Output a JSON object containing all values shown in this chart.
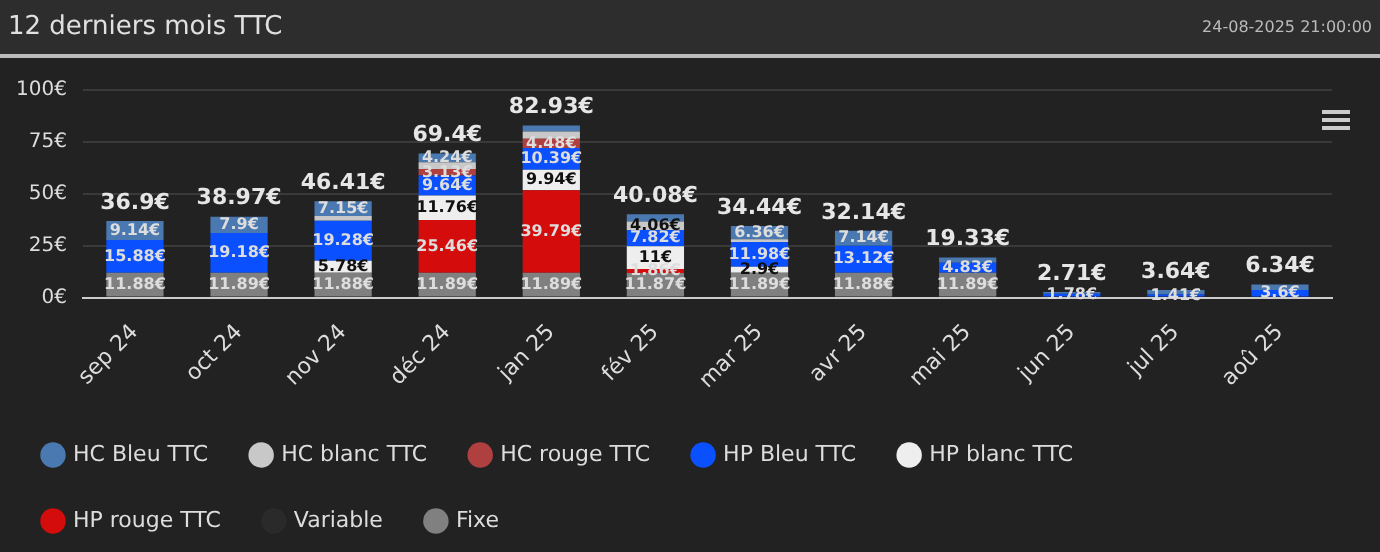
{
  "chart_data": {
    "type": "bar",
    "title": "12 derniers mois TTC",
    "annotations": [
      "24-08-2025 21:00:00"
    ],
    "categories": [
      "sep 24",
      "oct 24",
      "nov 24",
      "déc 24",
      "jan 25",
      "fév 25",
      "mar 25",
      "avr 25",
      "mai 25",
      "jun 25",
      "jul 25",
      "aoû 25"
    ],
    "stacked": true,
    "ylim": [
      0,
      100
    ],
    "yticks": [
      {
        "value": 0,
        "label": "0€"
      },
      {
        "value": 25,
        "label": "25€"
      },
      {
        "value": 50,
        "label": "50€"
      },
      {
        "value": 75,
        "label": "75€"
      },
      {
        "value": 100,
        "label": "100€"
      }
    ],
    "grid": "y",
    "legend": "bottom",
    "marker": "circle",
    "series": [
      {
        "name": "Fixe",
        "color": "#808080",
        "values": [
          11.88,
          11.89,
          11.88,
          11.89,
          11.89,
          11.87,
          11.89,
          11.88,
          11.89,
          0,
          0,
          0
        ],
        "value_labels": [
          "11.88€",
          "11.89€",
          "11.88€",
          "11.89€",
          "11.89€",
          "11.87€",
          "11.89€",
          "11.88€",
          "11.89€",
          null,
          null,
          null
        ]
      },
      {
        "name": "Variable",
        "color": "#2a2a2a",
        "values": [
          null,
          null,
          null,
          null,
          null,
          null,
          null,
          null,
          null,
          null,
          null,
          null
        ]
      },
      {
        "name": "HP rouge TTC",
        "color": "#d40c0c",
        "values": [
          0,
          0,
          0,
          25.46,
          39.79,
          1.86,
          0,
          0,
          0,
          0,
          0,
          0
        ],
        "value_labels": [
          null,
          null,
          null,
          "25.46€",
          "39.79€",
          "1.86€",
          null,
          null,
          null,
          null,
          null,
          null
        ]
      },
      {
        "name": "HP blanc TTC",
        "color": "#eeeeee",
        "values": [
          0,
          0,
          5.78,
          11.76,
          9.94,
          11,
          2.9,
          0,
          0,
          0,
          0,
          0
        ],
        "value_labels": [
          null,
          null,
          "5.78€",
          "11.76€",
          "9.94€",
          "11€",
          "2.9€",
          null,
          null,
          null,
          null,
          null
        ]
      },
      {
        "name": "HP Bleu TTC",
        "color": "#0a50ff",
        "values": [
          15.88,
          19.18,
          19.28,
          9.64,
          10.39,
          7.82,
          11.98,
          13.12,
          4.83,
          1.78,
          1.41,
          3.6
        ],
        "value_labels": [
          "15.88€",
          "19.18€",
          "19.28€",
          "9.64€",
          "10.39€",
          "7.82€",
          "11.98€",
          "13.12€",
          "4.83€",
          "1.78€",
          "1.41€",
          "3.6€"
        ]
      },
      {
        "name": "HC rouge TTC",
        "color": "#b04040",
        "values": [
          0,
          0,
          0,
          3.13,
          4.48,
          0,
          0,
          0,
          0,
          0,
          0,
          0
        ],
        "value_labels": [
          null,
          null,
          null,
          "3.13€",
          "4.48€",
          null,
          null,
          null,
          null,
          null,
          null,
          null
        ]
      },
      {
        "name": "HC blanc TTC",
        "color": "#c8c8c8",
        "values": [
          0,
          0,
          2.3,
          3.3,
          3.5,
          4.06,
          1.3,
          0,
          0,
          0,
          0,
          0
        ],
        "value_labels": [
          null,
          null,
          null,
          null,
          null,
          "4.06€",
          null,
          null,
          null,
          null,
          null,
          null
        ]
      },
      {
        "name": "HC Bleu TTC",
        "color": "#4a78b0",
        "values": [
          9.14,
          7.9,
          7.15,
          4.24,
          2.9,
          3.5,
          6.36,
          7.14,
          2.6,
          0.9,
          2.2,
          2.7
        ],
        "value_labels": [
          "9.14€",
          "7.9€",
          "7.15€",
          "4.24€",
          null,
          null,
          "6.36€",
          "7.14€",
          null,
          null,
          null,
          null
        ]
      }
    ],
    "totals": [
      "36.9€",
      "38.97€",
      "46.41€",
      "69.4€",
      "82.93€",
      "40.08€",
      "34.44€",
      "32.14€",
      "19.33€",
      "2.71€",
      "3.64€",
      "6.34€"
    ]
  }
}
